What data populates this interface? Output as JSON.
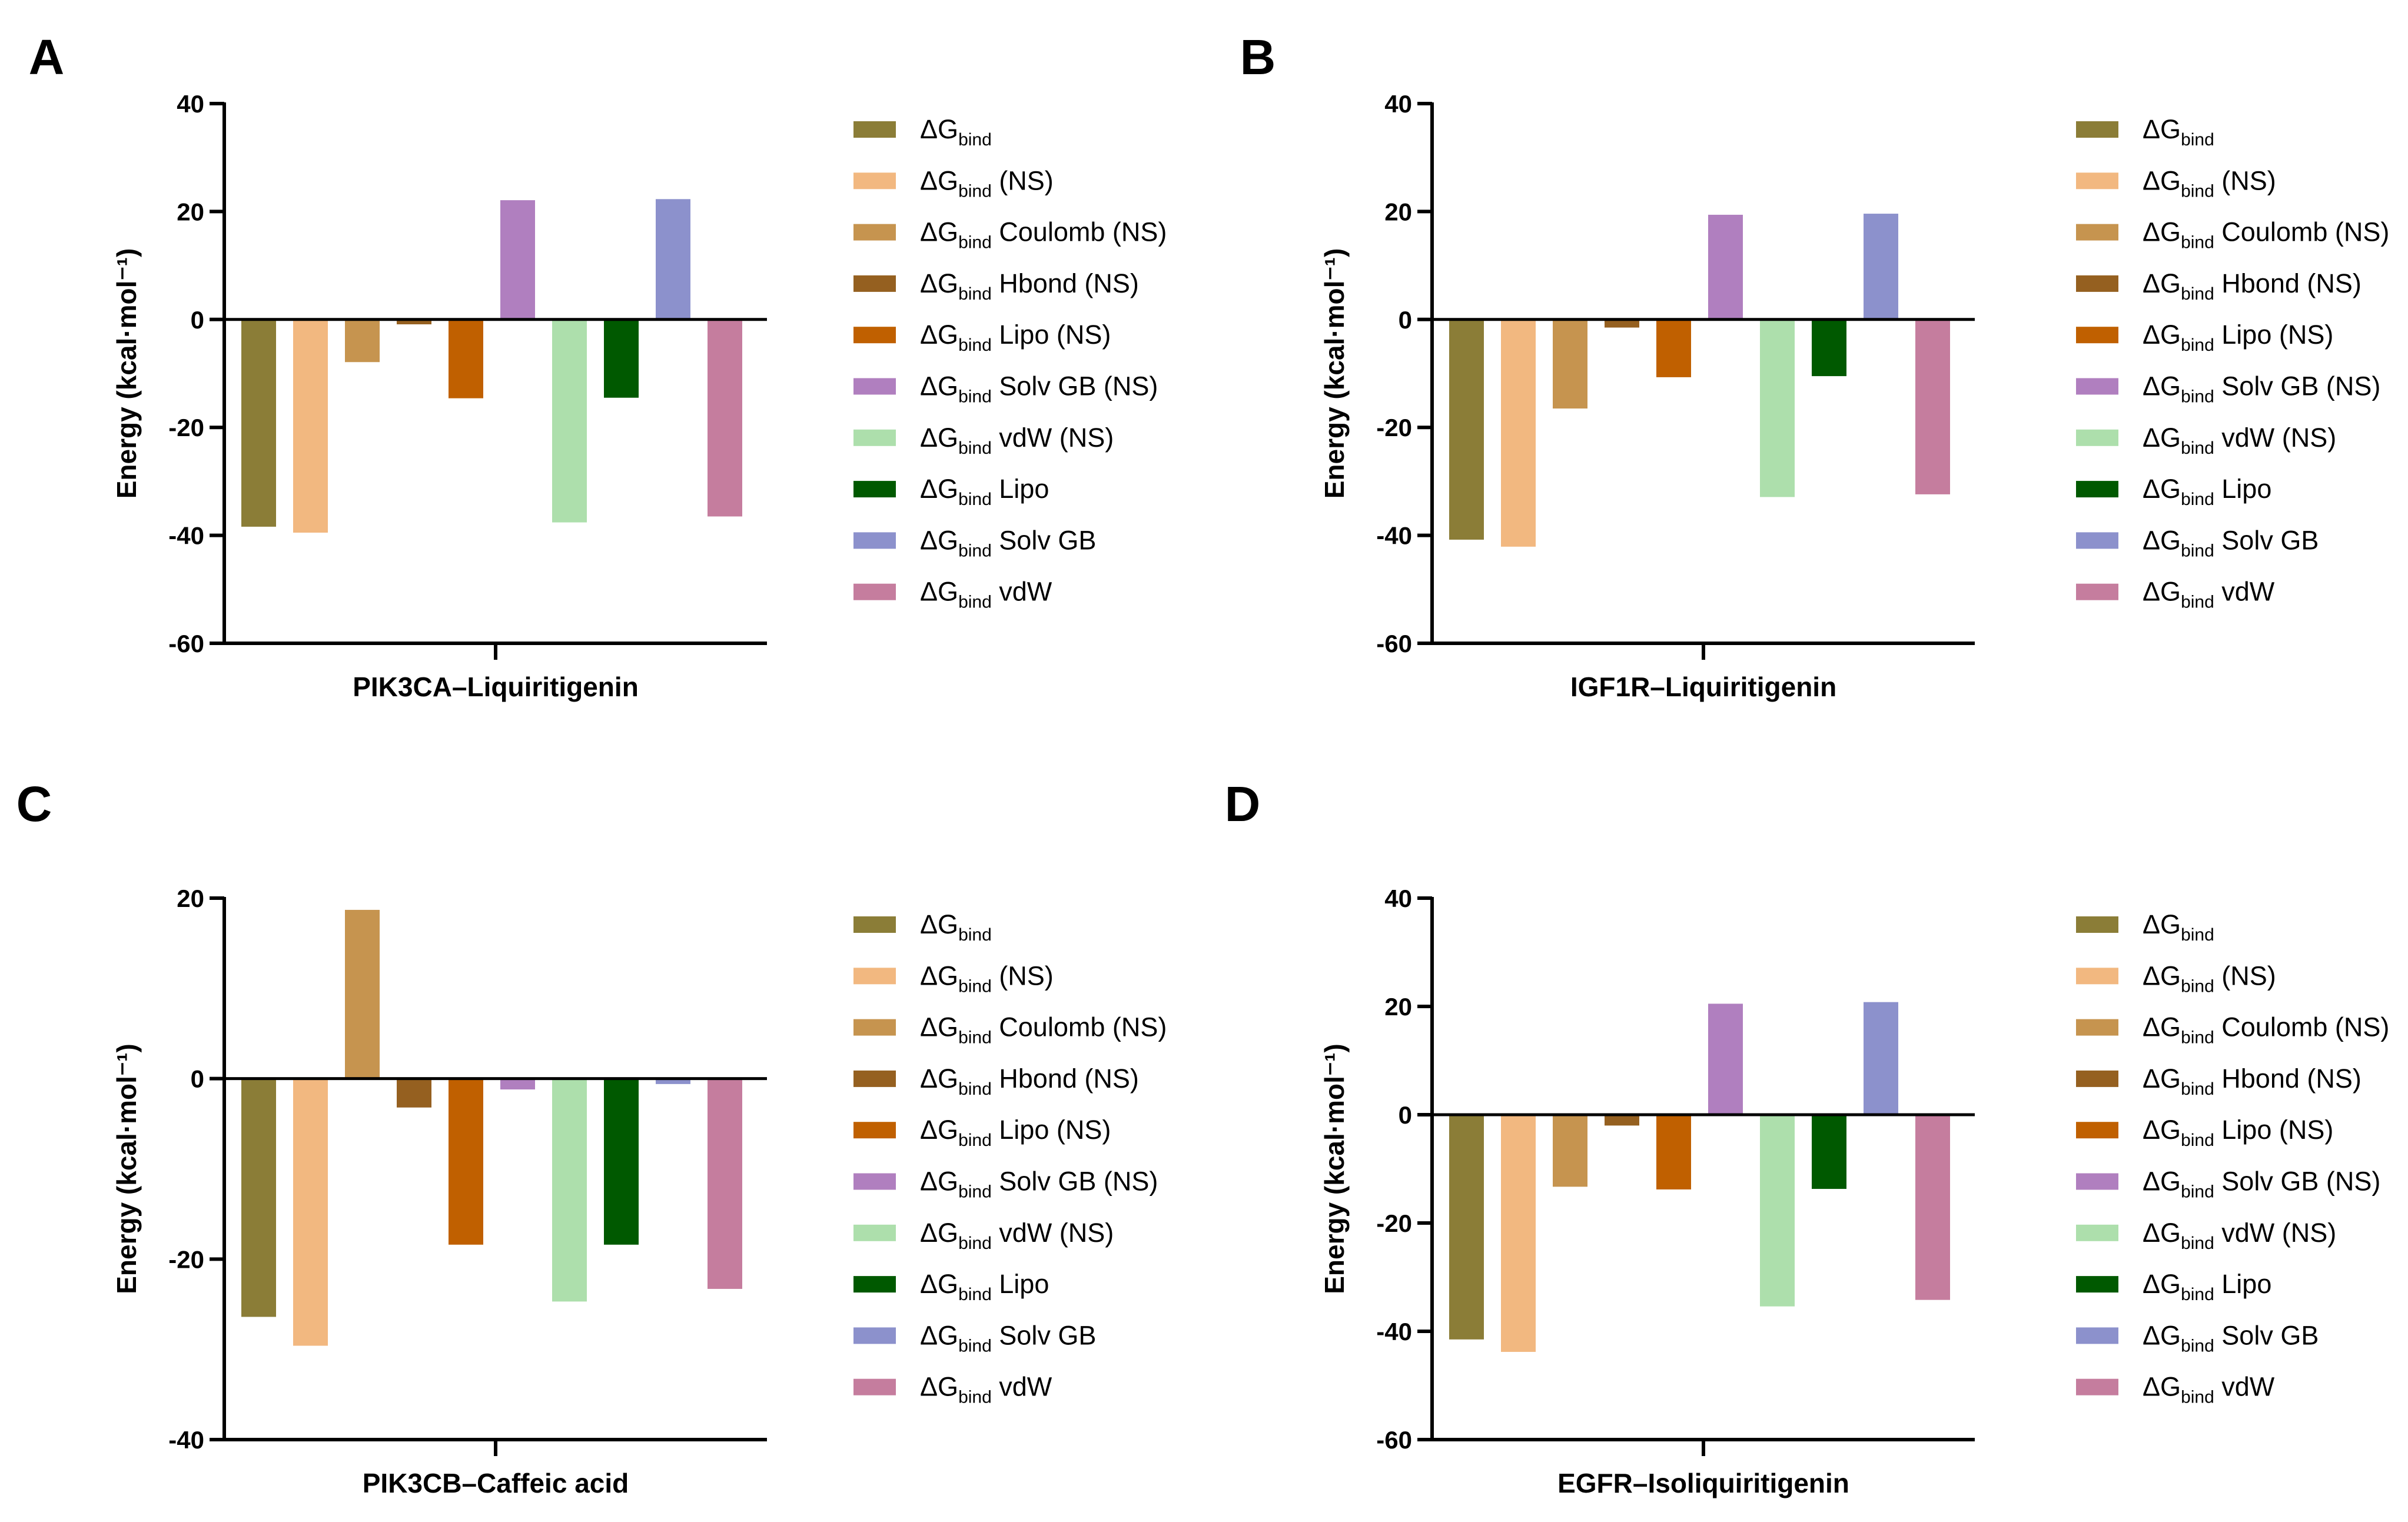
{
  "chart_data": [
    {
      "type": "bar",
      "panel": "A",
      "xlabel": "PIK3CA–Liquiritigenin",
      "ylabel": "Energy (kcal·mol⁻¹)",
      "ylim": [
        -60,
        40
      ],
      "yticks": [
        40,
        20,
        0,
        -20,
        -40,
        -60
      ],
      "legend_position": "right",
      "values": [
        -38.4,
        -39.5,
        -7.9,
        -0.9,
        -14.6,
        22.1,
        -37.6,
        -14.5,
        22.3,
        -36.5
      ]
    },
    {
      "type": "bar",
      "panel": "B",
      "xlabel": "IGF1R–Liquiritigenin",
      "ylabel": "Energy (kcal·mol⁻¹)",
      "ylim": [
        -60,
        40
      ],
      "yticks": [
        40,
        20,
        0,
        -20,
        -40,
        -60
      ],
      "legend_position": "right",
      "values": [
        -40.8,
        -42.1,
        -16.5,
        -1.5,
        -10.7,
        19.4,
        -32.9,
        -10.5,
        19.6,
        -32.4
      ]
    },
    {
      "type": "bar",
      "panel": "C",
      "xlabel": "PIK3CB–Caffeic acid",
      "ylabel": "Energy (kcal·mol⁻¹)",
      "ylim": [
        -40,
        20
      ],
      "yticks": [
        20,
        0,
        -20,
        -40
      ],
      "legend_position": "right",
      "values": [
        -26.4,
        -29.6,
        18.7,
        -3.2,
        -18.4,
        -1.2,
        -24.7,
        -18.4,
        -0.6,
        -23.3
      ]
    },
    {
      "type": "bar",
      "panel": "D",
      "xlabel": "EGFR–Isoliquiritigenin",
      "ylabel": "Energy (kcal·mol⁻¹)",
      "ylim": [
        -60,
        40
      ],
      "yticks": [
        40,
        20,
        0,
        -20,
        -40,
        -60
      ],
      "legend_position": "right",
      "values": [
        -41.5,
        -43.8,
        -13.3,
        -2.0,
        -13.8,
        20.5,
        -35.4,
        -13.7,
        20.8,
        -34.2
      ]
    }
  ],
  "series": [
    {
      "prefix": "ΔG",
      "sub": "bind",
      "suffix": "",
      "color": "#8B7D37"
    },
    {
      "prefix": "ΔG",
      "sub": "bind",
      "suffix": " (NS)",
      "color": "#F2B880"
    },
    {
      "prefix": "ΔG",
      "sub": "bind",
      "suffix": " Coulomb (NS)",
      "color": "#C6944F"
    },
    {
      "prefix": "ΔG",
      "sub": "bind",
      "suffix": " Hbond (NS)",
      "color": "#956020"
    },
    {
      "prefix": "ΔG",
      "sub": "bind",
      "suffix": " Lipo (NS)",
      "color": "#C06000"
    },
    {
      "prefix": "ΔG",
      "sub": "bind",
      "suffix": " Solv GB (NS)",
      "color": "#B07FBF"
    },
    {
      "prefix": "ΔG",
      "sub": "bind",
      "suffix": " vdW (NS)",
      "color": "#ADDFAC"
    },
    {
      "prefix": "ΔG",
      "sub": "bind",
      "suffix": " Lipo",
      "color": "#005900"
    },
    {
      "prefix": "ΔG",
      "sub": "bind",
      "suffix": " Solv GB",
      "color": "#8C91CC"
    },
    {
      "prefix": "ΔG",
      "sub": "bind",
      "suffix": " vdW",
      "color": "#C57D9E"
    }
  ]
}
